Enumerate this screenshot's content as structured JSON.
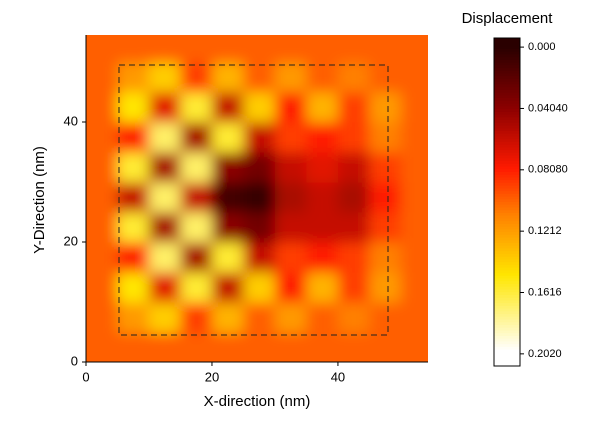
{
  "chart_data": {
    "type": "heatmap",
    "xlabel": "X-direction (nm)",
    "ylabel": "Y-Direction (nm)",
    "colorbar_label": "Displacement",
    "x": [
      2.5,
      7.5,
      12.5,
      17.5,
      22.5,
      27.5,
      32.5,
      37.5,
      42.5,
      47.5,
      52.5
    ],
    "y": [
      2.5,
      7.5,
      12.5,
      17.5,
      22.5,
      27.5,
      32.5,
      37.5,
      42.5,
      47.5,
      52.5
    ],
    "z": [
      [
        0.1,
        0.1,
        0.1,
        0.1,
        0.1,
        0.1,
        0.1,
        0.1,
        0.1,
        0.1,
        0.1
      ],
      [
        0.1,
        0.12,
        0.14,
        0.09,
        0.13,
        0.1,
        0.12,
        0.1,
        0.11,
        0.1,
        0.1
      ],
      [
        0.1,
        0.15,
        0.07,
        0.16,
        0.06,
        0.14,
        0.08,
        0.13,
        0.09,
        0.12,
        0.1
      ],
      [
        0.1,
        0.08,
        0.17,
        0.05,
        0.16,
        0.06,
        0.09,
        0.08,
        0.09,
        0.11,
        0.1
      ],
      [
        0.1,
        0.16,
        0.05,
        0.17,
        0.04,
        0.03,
        0.06,
        0.06,
        0.06,
        0.09,
        0.1
      ],
      [
        0.1,
        0.06,
        0.17,
        0.06,
        0.01,
        0.005,
        0.05,
        0.06,
        0.05,
        0.08,
        0.1
      ],
      [
        0.1,
        0.16,
        0.05,
        0.17,
        0.04,
        0.03,
        0.06,
        0.07,
        0.06,
        0.09,
        0.1
      ],
      [
        0.1,
        0.08,
        0.17,
        0.05,
        0.16,
        0.06,
        0.09,
        0.08,
        0.09,
        0.11,
        0.1
      ],
      [
        0.1,
        0.15,
        0.07,
        0.16,
        0.06,
        0.14,
        0.08,
        0.13,
        0.09,
        0.12,
        0.1
      ],
      [
        0.1,
        0.12,
        0.14,
        0.09,
        0.13,
        0.1,
        0.12,
        0.1,
        0.11,
        0.1,
        0.1
      ],
      [
        0.1,
        0.1,
        0.1,
        0.1,
        0.1,
        0.1,
        0.1,
        0.1,
        0.1,
        0.1,
        0.1
      ]
    ],
    "background_value": 0.1,
    "xlim": [
      0,
      54.3
    ],
    "ylim": [
      0,
      54.5
    ],
    "xticks": [
      0,
      20,
      40
    ],
    "yticks": [
      0,
      20,
      40
    ],
    "clim": [
      -0.006,
      0.21
    ],
    "cticks": [
      {
        "value": 0,
        "label": "0.000"
      },
      {
        "value": 0.0404,
        "label": "0.04040"
      },
      {
        "value": 0.0808,
        "label": "0.08080"
      },
      0.1212,
      0.1616,
      {
        "value": 0.202,
        "label": "0.2020"
      }
    ],
    "colorscale": [
      [
        0,
        "#2a0000"
      ],
      [
        0.04,
        "#8b0000"
      ],
      [
        0.08,
        "#ff1a00"
      ],
      [
        0.11,
        "#ff8000"
      ],
      [
        0.15,
        "#ffe600"
      ],
      [
        0.2,
        "#ffffff"
      ]
    ]
  }
}
